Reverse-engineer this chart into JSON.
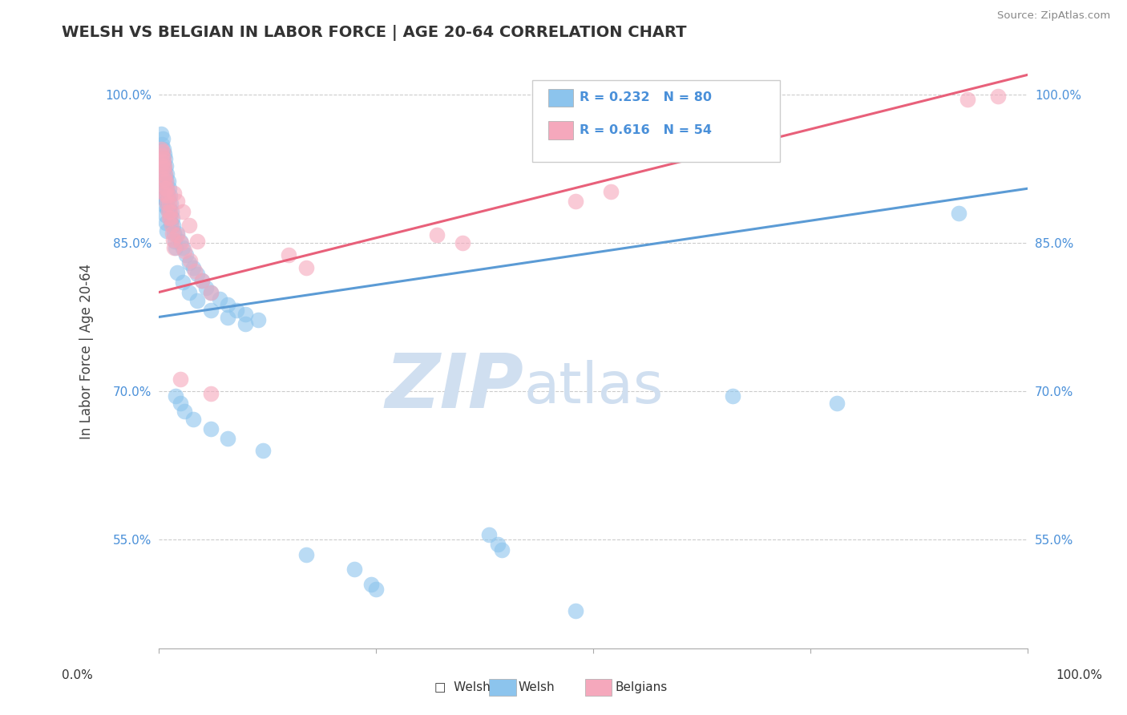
{
  "title": "WELSH VS BELGIAN IN LABOR FORCE | AGE 20-64 CORRELATION CHART",
  "source": "Source: ZipAtlas.com",
  "ylabel": "In Labor Force | Age 20-64",
  "yticks": [
    0.55,
    0.7,
    0.85,
    1.0
  ],
  "ytick_labels": [
    "55.0%",
    "70.0%",
    "85.0%",
    "100.0%"
  ],
  "xmin": 0.0,
  "xmax": 1.0,
  "ymin": 0.44,
  "ymax": 1.04,
  "welsh_R": 0.232,
  "welsh_N": 80,
  "belgian_R": 0.616,
  "belgian_N": 54,
  "welsh_color": "#8cc4ed",
  "belgian_color": "#f5a8bc",
  "welsh_line_color": "#5b9bd5",
  "belgian_line_color": "#e8607a",
  "watermark_zip": "ZIP",
  "watermark_atlas": "atlas",
  "watermark_color": "#d0dff0",
  "welsh_line_start_y": 0.775,
  "welsh_line_end_y": 0.905,
  "belgian_line_start_y": 0.8,
  "belgian_line_end_y": 1.02
}
